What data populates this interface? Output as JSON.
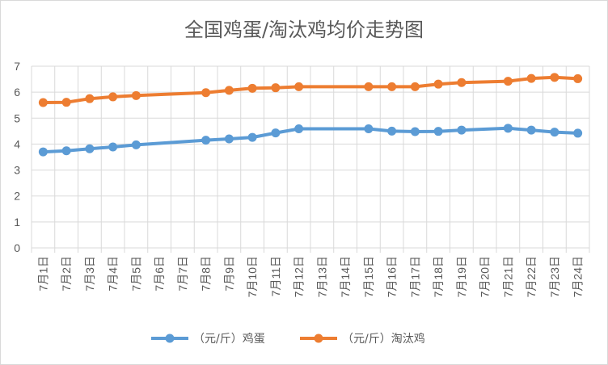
{
  "chart_data": {
    "type": "line",
    "title": "全国鸡蛋/淘汰鸡均价走势图",
    "categories": [
      "7月1日",
      "7月2日",
      "7月3日",
      "7月4日",
      "7月5日",
      "7月6日",
      "7月7日",
      "7月8日",
      "7月9日",
      "7月10日",
      "7月11日",
      "7月12日",
      "7月13日",
      "7月14日",
      "7月15日",
      "7月16日",
      "7月17日",
      "7月18日",
      "7月19日",
      "7月20日",
      "7月21日",
      "7月22日",
      "7月23日",
      "7月24日"
    ],
    "series": [
      {
        "name": "（元/斤）鸡蛋",
        "color": "#5b9bd5",
        "values": [
          3.7,
          3.74,
          3.82,
          3.89,
          3.97,
          null,
          null,
          4.15,
          4.2,
          4.26,
          4.43,
          4.59,
          null,
          null,
          4.59,
          4.5,
          4.48,
          4.49,
          4.54,
          null,
          4.61,
          4.54,
          4.46,
          4.42
        ]
      },
      {
        "name": "（元/斤）淘汰鸡",
        "color": "#ed7d31",
        "values": [
          5.6,
          5.61,
          5.75,
          5.82,
          5.87,
          null,
          null,
          5.98,
          6.07,
          6.15,
          6.17,
          6.21,
          null,
          null,
          6.21,
          6.21,
          6.21,
          6.31,
          6.37,
          null,
          6.42,
          6.53,
          6.57,
          6.52
        ]
      }
    ],
    "ylim": [
      0,
      7
    ],
    "yticks": [
      0,
      1,
      2,
      3,
      4,
      5,
      6,
      7
    ],
    "grid": true,
    "legend": "bottom",
    "xlabel": "",
    "ylabel": ""
  }
}
